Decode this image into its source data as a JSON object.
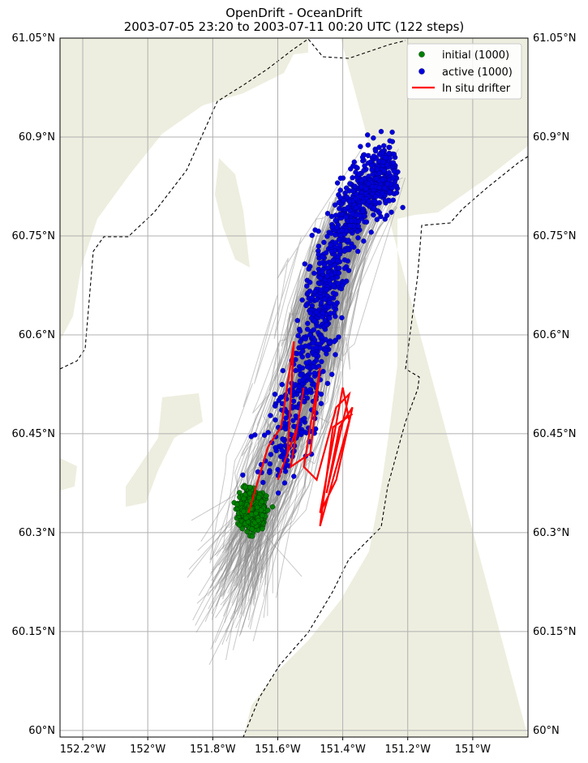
{
  "title": {
    "line1": "OpenDrift - OceanDrift",
    "line2": "2003-07-05 23:20 to 2003-07-11 00:20 UTC (122 steps)"
  },
  "chart_data": {
    "type": "scatter",
    "xlim": [
      -152.27,
      -150.83
    ],
    "ylim": [
      59.99,
      61.05
    ],
    "x_ticks": [
      -152.2,
      -152.0,
      -151.8,
      -151.6,
      -151.4,
      -151.2,
      -151.0
    ],
    "x_tick_labels": [
      "152.2°W",
      "152°W",
      "151.8°W",
      "151.6°W",
      "151.4°W",
      "151.2°W",
      "151°W"
    ],
    "y_ticks": [
      60.0,
      60.15,
      60.3,
      60.45,
      60.6,
      60.75,
      60.9,
      61.05
    ],
    "y_tick_labels": [
      "60°N",
      "60.15°N",
      "60.3°N",
      "60.45°N",
      "60.6°N",
      "60.75°N",
      "60.9°N",
      "61.05°N"
    ],
    "grid": true,
    "legend_placement": "top-right",
    "series": [
      {
        "name": "initial (1000)",
        "kind": "points",
        "color": "#008000",
        "count": 1000,
        "center": [
          -151.68,
          60.335
        ],
        "spread": [
          0.018,
          0.012
        ]
      },
      {
        "name": "active (1000)",
        "kind": "points",
        "color": "#0000dd",
        "count": 1000,
        "spine": [
          [
            -151.62,
            60.38
          ],
          [
            -151.5,
            60.55
          ],
          [
            -151.45,
            60.7
          ],
          [
            -151.34,
            60.82
          ],
          [
            -151.25,
            60.85
          ]
        ]
      },
      {
        "name": "In situ drifter",
        "kind": "line",
        "color": "#ff0000",
        "path": [
          [
            -151.69,
            60.33
          ],
          [
            -151.63,
            60.43
          ],
          [
            -151.59,
            60.46
          ],
          [
            -151.55,
            60.59
          ],
          [
            -151.57,
            60.42
          ],
          [
            -151.6,
            60.38
          ],
          [
            -151.54,
            60.46
          ],
          [
            -151.52,
            60.52
          ],
          [
            -151.56,
            60.4
          ],
          [
            -151.5,
            60.42
          ],
          [
            -151.47,
            60.55
          ],
          [
            -151.52,
            60.4
          ],
          [
            -151.48,
            60.38
          ],
          [
            -151.42,
            60.49
          ],
          [
            -151.38,
            60.51
          ],
          [
            -151.45,
            60.36
          ],
          [
            -151.41,
            60.46
          ],
          [
            -151.37,
            60.49
          ],
          [
            -151.42,
            60.38
          ],
          [
            -151.47,
            60.33
          ],
          [
            -151.4,
            60.52
          ],
          [
            -151.38,
            60.47
          ],
          [
            -151.47,
            60.31
          ],
          [
            -151.43,
            60.46
          ],
          [
            -151.37,
            60.48
          ]
        ]
      }
    ],
    "trajectory_color": "#888888",
    "land_color": "#eeeee0",
    "coastline_style": "dashed"
  }
}
